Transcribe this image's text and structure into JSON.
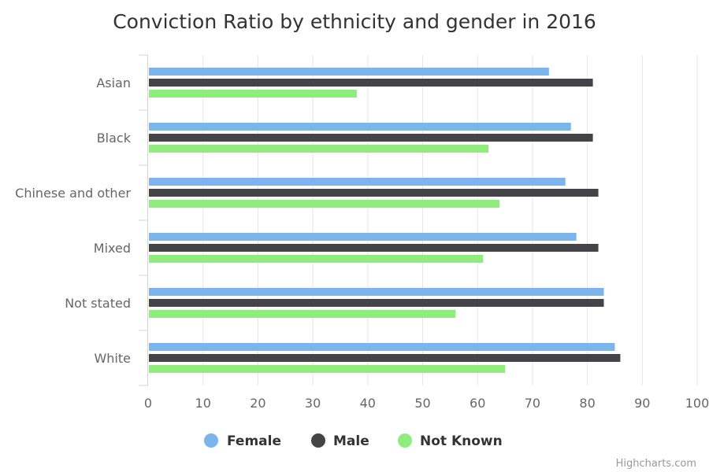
{
  "chart_data": {
    "type": "bar",
    "orientation": "horizontal",
    "title": "Conviction Ratio by ethnicity and gender in 2016",
    "categories": [
      "Asian",
      "Black",
      "Chinese and other",
      "Mixed",
      "Not stated",
      "White"
    ],
    "series": [
      {
        "name": "Female",
        "color": "#7cb5ec",
        "values": [
          73,
          77,
          76,
          78,
          83,
          85
        ]
      },
      {
        "name": "Male",
        "color": "#434348",
        "values": [
          81,
          81,
          82,
          82,
          83,
          86
        ]
      },
      {
        "name": "Not Known",
        "color": "#90ed7d",
        "values": [
          38,
          62,
          64,
          61,
          56,
          65
        ]
      }
    ],
    "xlim": [
      0,
      100
    ],
    "x_ticks": [
      "0",
      "10",
      "20",
      "30",
      "40",
      "50",
      "60",
      "70",
      "80",
      "90",
      "100"
    ],
    "grid": true,
    "legend": "bottom-center"
  },
  "credits": "Highcharts.com"
}
